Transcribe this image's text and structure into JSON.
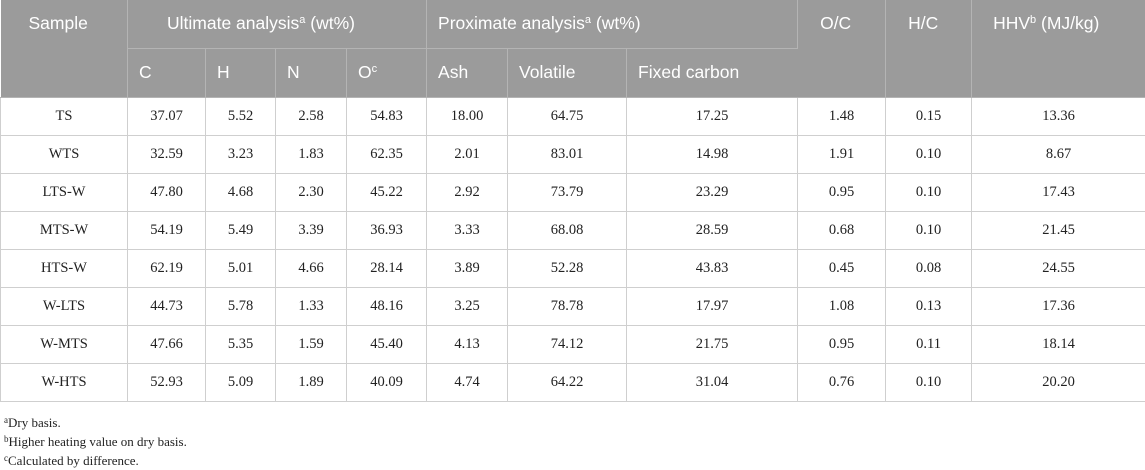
{
  "headers": {
    "sample": "Sample",
    "ultimate": "Ultimate analysis",
    "ultimate_sup": "a",
    "ultimate_unit": " (wt%)",
    "proximate": "Proximate analysis",
    "proximate_sup": "a",
    "proximate_unit": " (wt%)",
    "oc": "O/C",
    "hc": "H/C",
    "hhv": "HHV",
    "hhv_sup": "b",
    "hhv_unit": " (MJ/kg)",
    "c": "C",
    "h": "H",
    "n": "N",
    "o": "O",
    "o_sup": "c",
    "ash": "Ash",
    "volatile": "Volatile",
    "fixed_carbon": "Fixed carbon"
  },
  "rows": [
    {
      "sample": "TS",
      "c": "37.07",
      "h": "5.52",
      "n": "2.58",
      "o": "54.83",
      "ash": "18.00",
      "volatile": "64.75",
      "fixed": "17.25",
      "oc": "1.48",
      "hc": "0.15",
      "hhv": "13.36"
    },
    {
      "sample": "WTS",
      "c": "32.59",
      "h": "3.23",
      "n": "1.83",
      "o": "62.35",
      "ash": "2.01",
      "volatile": "83.01",
      "fixed": "14.98",
      "oc": "1.91",
      "hc": "0.10",
      "hhv": "8.67"
    },
    {
      "sample": "LTS-W",
      "c": "47.80",
      "h": "4.68",
      "n": "2.30",
      "o": "45.22",
      "ash": "2.92",
      "volatile": "73.79",
      "fixed": "23.29",
      "oc": "0.95",
      "hc": "0.10",
      "hhv": "17.43"
    },
    {
      "sample": "MTS-W",
      "c": "54.19",
      "h": "5.49",
      "n": "3.39",
      "o": "36.93",
      "ash": "3.33",
      "volatile": "68.08",
      "fixed": "28.59",
      "oc": "0.68",
      "hc": "0.10",
      "hhv": "21.45"
    },
    {
      "sample": "HTS-W",
      "c": "62.19",
      "h": "5.01",
      "n": "4.66",
      "o": "28.14",
      "ash": "3.89",
      "volatile": "52.28",
      "fixed": "43.83",
      "oc": "0.45",
      "hc": "0.08",
      "hhv": "24.55"
    },
    {
      "sample": "W-LTS",
      "c": "44.73",
      "h": "5.78",
      "n": "1.33",
      "o": "48.16",
      "ash": "3.25",
      "volatile": "78.78",
      "fixed": "17.97",
      "oc": "1.08",
      "hc": "0.13",
      "hhv": "17.36"
    },
    {
      "sample": "W-MTS",
      "c": "47.66",
      "h": "5.35",
      "n": "1.59",
      "o": "45.40",
      "ash": "4.13",
      "volatile": "74.12",
      "fixed": "21.75",
      "oc": "0.95",
      "hc": "0.11",
      "hhv": "18.14"
    },
    {
      "sample": "W-HTS",
      "c": "52.93",
      "h": "5.09",
      "n": "1.89",
      "o": "40.09",
      "ash": "4.74",
      "volatile": "64.22",
      "fixed": "31.04",
      "oc": "0.76",
      "hc": "0.10",
      "hhv": "20.20"
    }
  ],
  "notes": [
    {
      "mark": "a",
      "text": "Dry basis."
    },
    {
      "mark": "b",
      "text": "Higher heating value on dry basis."
    },
    {
      "mark": "c",
      "text": "Calculated by difference."
    }
  ]
}
